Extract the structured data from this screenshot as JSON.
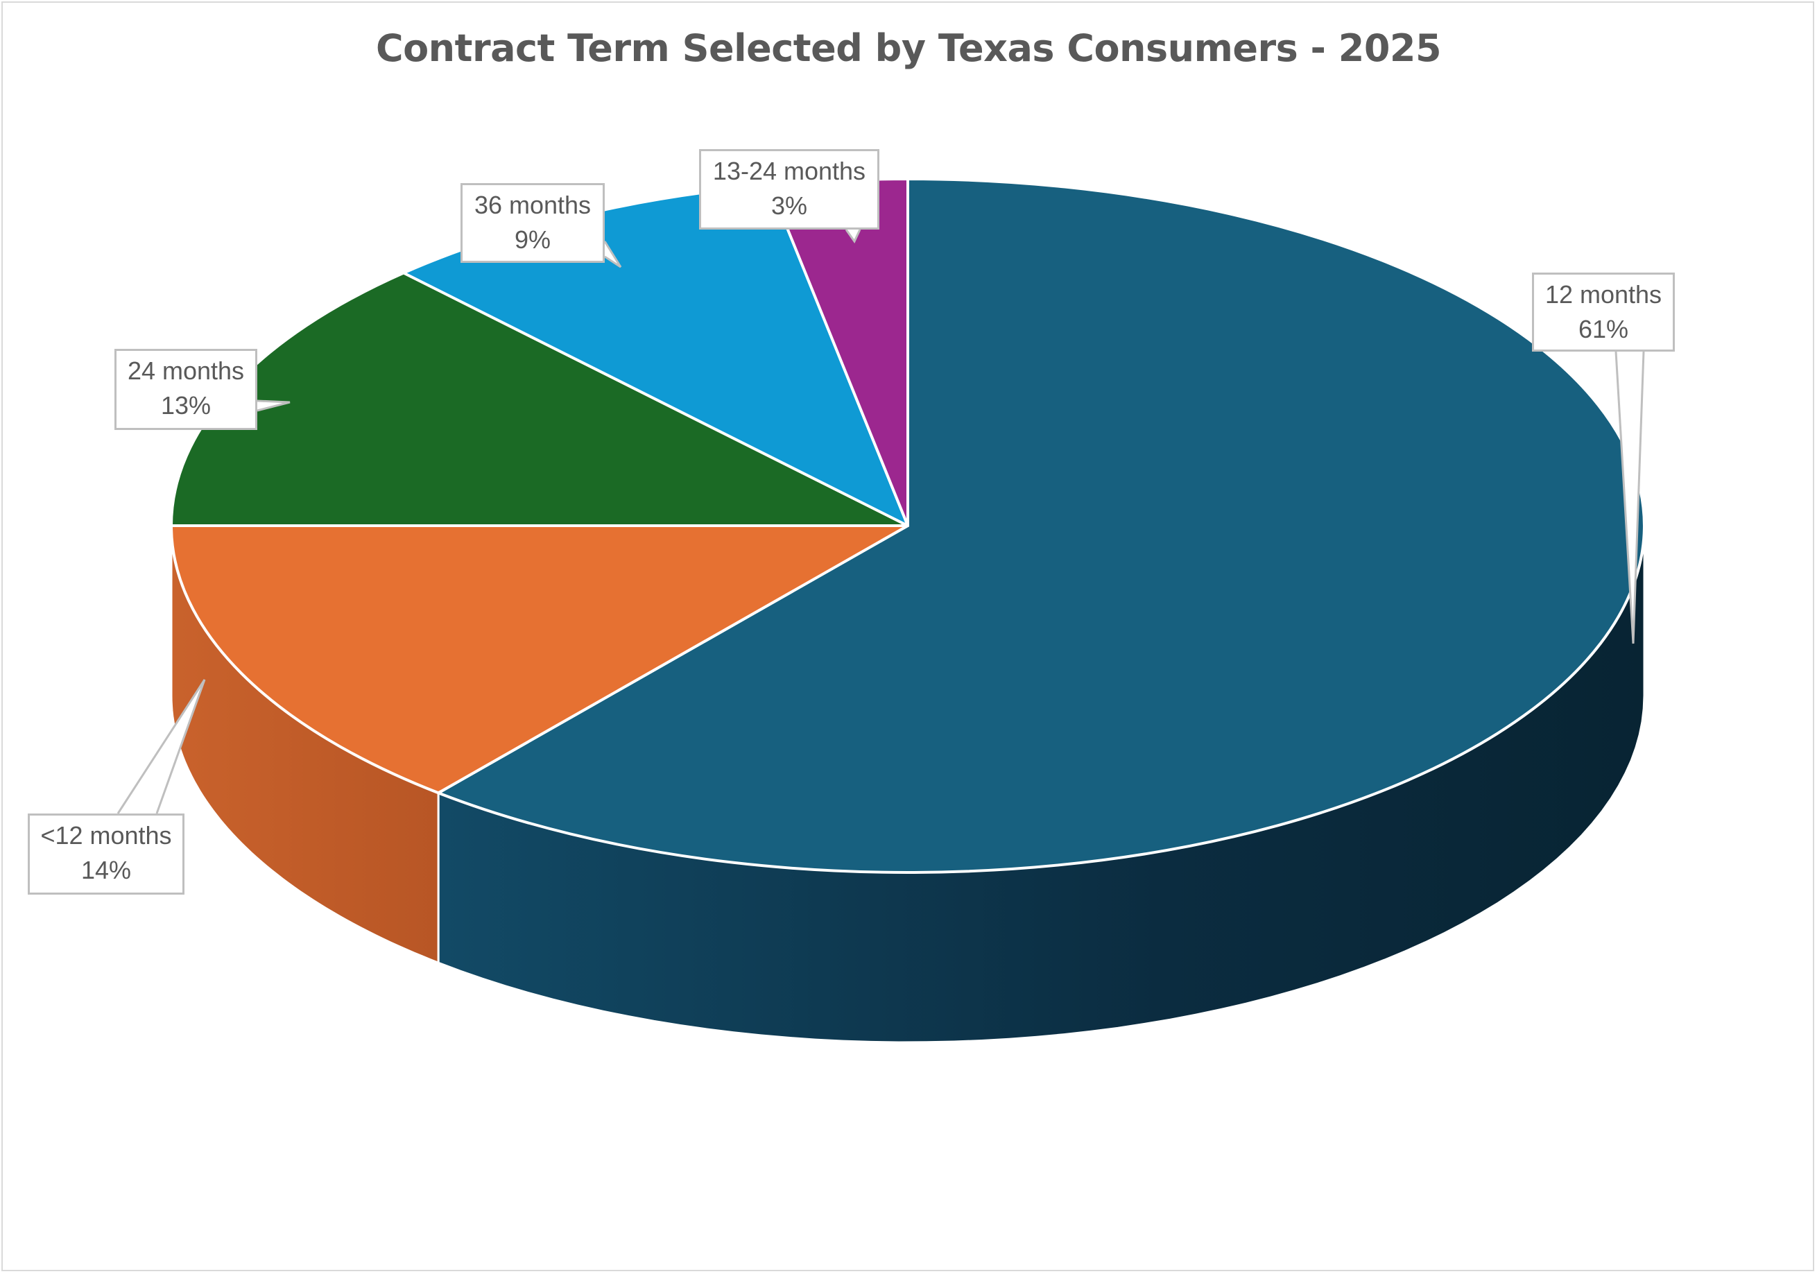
{
  "chart_data": {
    "type": "pie",
    "style": "3d-pie",
    "title": "Contract Term Selected by Texas Consumers - 2025",
    "categories": [
      "12 months",
      "<12 months",
      "24 months",
      "36 months",
      "13-24 months"
    ],
    "values": [
      61,
      14,
      13,
      9,
      3
    ],
    "unit": "%",
    "colors": [
      "#17607F",
      "#E67132",
      "#1B6A25",
      "#0F9AD4",
      "#9C278F"
    ],
    "start_angle": "12 o'clock, clockwise",
    "legend": "none (data callouts)",
    "data_labels": [
      {
        "category": "12 months",
        "percent": "61%"
      },
      {
        "category": "<12 months",
        "percent": "14%"
      },
      {
        "category": "24 months",
        "percent": "13%"
      },
      {
        "category": "36 months",
        "percent": "9%"
      },
      {
        "category": "13-24 months",
        "percent": "3%"
      }
    ]
  },
  "labels": {
    "twelve": {
      "name": "12 months",
      "pct": "61%"
    },
    "lt12": {
      "name": "<12 months",
      "pct": "14%"
    },
    "twentyfour": {
      "name": "24 months",
      "pct": "13%"
    },
    "thirtysix": {
      "name": "36 months",
      "pct": "9%"
    },
    "thirteen24": {
      "name": "13-24 months",
      "pct": "3%"
    }
  }
}
